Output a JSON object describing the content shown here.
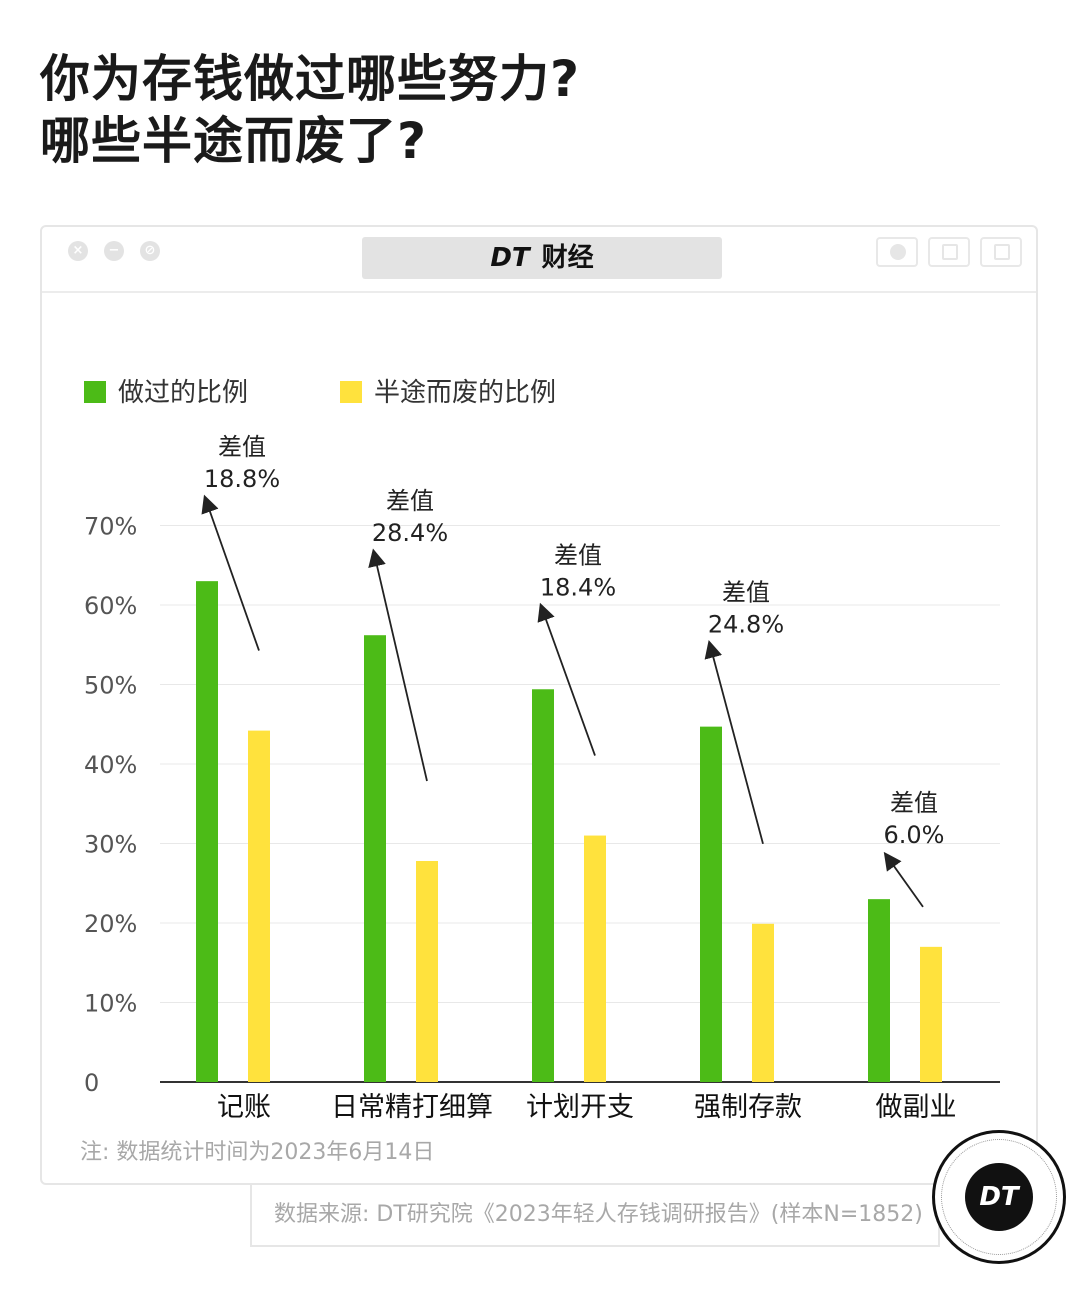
{
  "title": {
    "line1": "你为存钱做过哪些努力?",
    "line2": "哪些半途而废了?"
  },
  "window": {
    "brand_mark": "DT",
    "brand_text": "财经",
    "left_buttons": [
      "×",
      "−",
      "⊘"
    ],
    "right_icons": [
      "circle-icon",
      "upload-icon",
      "copy-icon"
    ]
  },
  "chart_data": {
    "type": "bar",
    "categories": [
      "记账",
      "日常精打细算",
      "计划开支",
      "强制存款",
      "做副业"
    ],
    "series": [
      {
        "name": "做过的比例",
        "values": [
          63.0,
          56.2,
          49.4,
          44.7,
          23.0
        ],
        "color": "#4cbb17"
      },
      {
        "name": "半途而废的比例",
        "values": [
          44.2,
          27.8,
          31.0,
          19.9,
          17.0
        ],
        "color": "#ffe23d"
      }
    ],
    "annotations": [
      {
        "label": "差值",
        "value": "18.8%"
      },
      {
        "label": "差值",
        "value": "28.4%"
      },
      {
        "label": "差值",
        "value": "18.4%"
      },
      {
        "label": "差值",
        "value": "24.8%"
      },
      {
        "label": "差值",
        "value": "6.0%"
      }
    ],
    "yticks": [
      "0",
      "10%",
      "20%",
      "30%",
      "40%",
      "50%",
      "60%",
      "70%"
    ],
    "ylim": [
      0,
      70
    ],
    "grid": true,
    "legend_position": "top-left"
  },
  "footer": {
    "note": "注: 数据统计时间为2023年6月14日",
    "source": "数据来源: DT研究院《2023年轻人存钱调研报告》(样本N=1852)",
    "logo_text": "DT"
  }
}
